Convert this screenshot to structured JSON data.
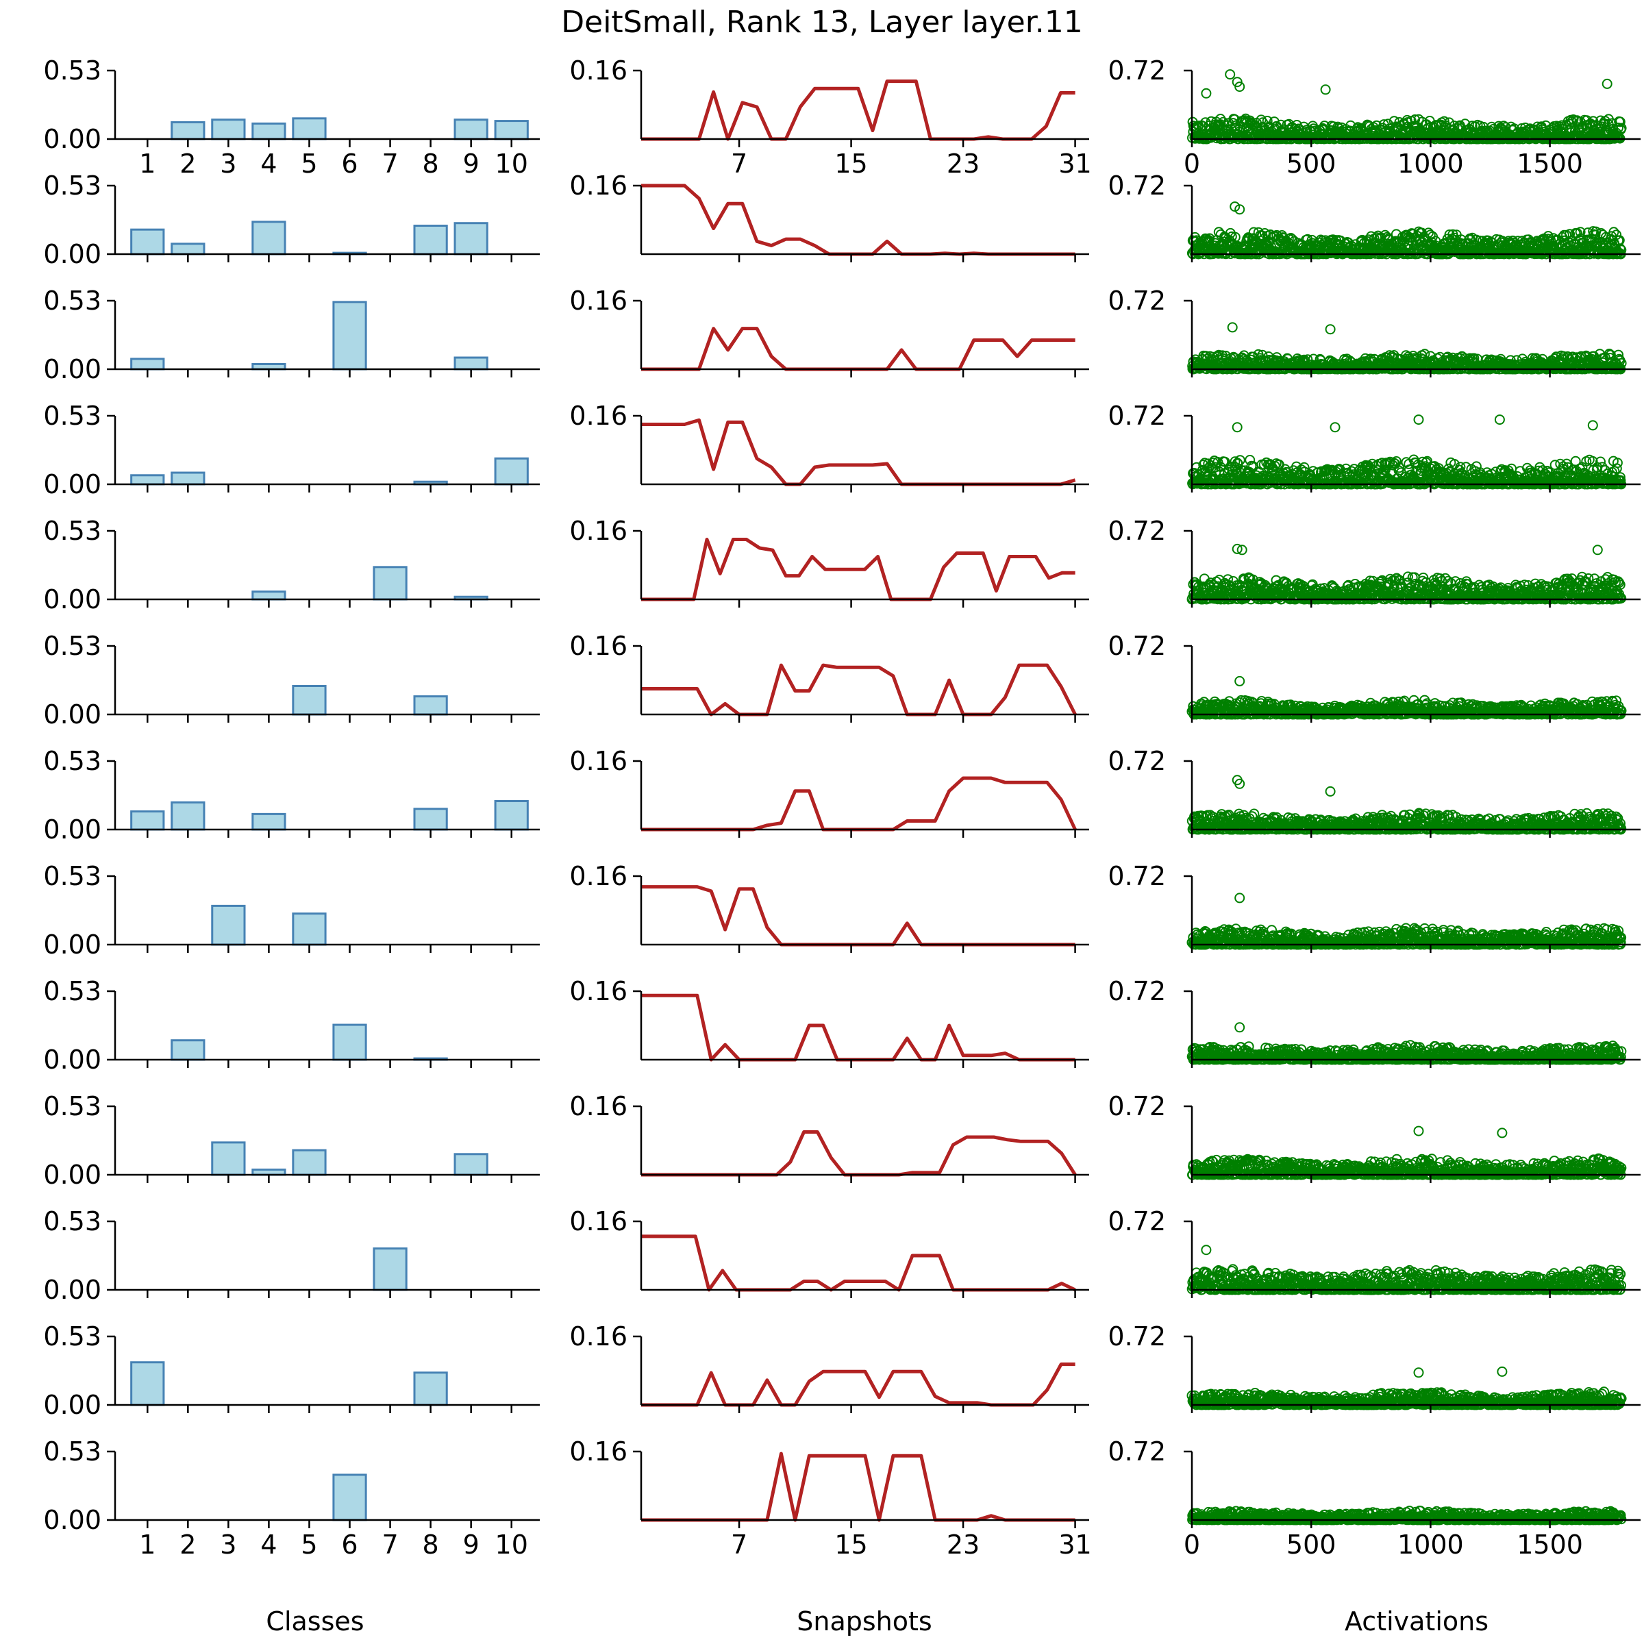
{
  "title": "DeitSmall, Rank 13, Layer layer.11",
  "colors": {
    "bar_fill": "#add8e6",
    "bar_edge": "#4682b4",
    "line": "#b22222",
    "scatter": "#008000",
    "axis": "#000000"
  },
  "chart_data": {
    "type": "grid",
    "rows": 13,
    "columns": [
      {
        "type": "bar",
        "xlabel": "Classes",
        "categories": [
          "1",
          "2",
          "3",
          "4",
          "5",
          "6",
          "7",
          "8",
          "9",
          "10"
        ],
        "y_ticks": [
          "0.00",
          "0.53"
        ],
        "ylim": [
          0,
          0.53
        ],
        "series": [
          [
            0.0,
            0.13,
            0.15,
            0.12,
            0.16,
            0.0,
            0.0,
            0.0,
            0.15,
            0.14
          ],
          [
            0.19,
            0.08,
            0.0,
            0.25,
            0.0,
            0.01,
            0.0,
            0.22,
            0.24,
            0.0
          ],
          [
            0.08,
            0.0,
            0.0,
            0.04,
            0.0,
            0.52,
            0.0,
            0.0,
            0.09,
            0.0
          ],
          [
            0.07,
            0.09,
            0.0,
            0.0,
            0.0,
            0.0,
            0.0,
            0.02,
            0.0,
            0.2
          ],
          [
            0.0,
            0.0,
            0.0,
            0.06,
            0.0,
            0.0,
            0.25,
            0.0,
            0.02,
            0.0
          ],
          [
            0.0,
            0.0,
            0.0,
            0.0,
            0.22,
            0.0,
            0.0,
            0.14,
            0.0,
            0.0
          ],
          [
            0.14,
            0.21,
            0.0,
            0.12,
            0.0,
            0.0,
            0.0,
            0.16,
            0.0,
            0.22
          ],
          [
            0.0,
            0.0,
            0.3,
            0.0,
            0.24,
            0.0,
            0.0,
            0.0,
            0.0,
            0.0
          ],
          [
            0.0,
            0.15,
            0.0,
            0.0,
            0.0,
            0.27,
            0.0,
            0.01,
            0.0,
            0.0
          ],
          [
            0.0,
            0.0,
            0.25,
            0.04,
            0.19,
            0.0,
            0.0,
            0.0,
            0.16,
            0.0
          ],
          [
            0.0,
            0.0,
            0.0,
            0.0,
            0.0,
            0.0,
            0.32,
            0.0,
            0.0,
            0.0
          ],
          [
            0.33,
            0.0,
            0.0,
            0.0,
            0.0,
            0.0,
            0.0,
            0.25,
            0.0,
            0.0
          ],
          [
            0.0,
            0.0,
            0.0,
            0.0,
            0.0,
            0.35,
            0.0,
            0.0,
            0.0,
            0.0
          ]
        ]
      },
      {
        "type": "line",
        "xlabel": "Snapshots",
        "x_ticks": [
          "7",
          "15",
          "23",
          "31"
        ],
        "x_tick_values": [
          7,
          15,
          23,
          31
        ],
        "xlim": [
          0,
          32
        ],
        "y_ticks": [
          "0.16"
        ],
        "ylim": [
          0,
          0.16
        ],
        "series": [
          [
            0,
            0,
            0,
            0,
            0,
            0.11,
            0,
            0.085,
            0.075,
            0,
            0,
            0.075,
            0.118,
            0.118,
            0.118,
            0.118,
            0.02,
            0.135,
            0.135,
            0.135,
            0,
            0,
            0,
            0,
            0.005,
            0,
            0,
            0,
            0.03,
            0.108,
            0.108
          ],
          [
            0.16,
            0.16,
            0.16,
            0.16,
            0.13,
            0.06,
            0.118,
            0.118,
            0.03,
            0.02,
            0.035,
            0.035,
            0.02,
            0,
            0,
            0,
            0,
            0.03,
            0,
            0,
            0,
            0.002,
            0,
            0.002,
            0,
            0,
            0,
            0,
            0,
            0,
            0
          ],
          [
            0,
            0,
            0,
            0,
            0,
            0.095,
            0.045,
            0.095,
            0.095,
            0.03,
            0,
            0,
            0,
            0,
            0,
            0,
            0,
            0,
            0.045,
            0,
            0,
            0,
            0,
            0.068,
            0.068,
            0.068,
            0.03,
            0.068,
            0.068,
            0.068,
            0.068
          ],
          [
            0.14,
            0.14,
            0.14,
            0.14,
            0.15,
            0.035,
            0.145,
            0.145,
            0.06,
            0.04,
            0,
            0,
            0.04,
            0.045,
            0.045,
            0.045,
            0.045,
            0.048,
            0,
            0,
            0,
            0,
            0,
            0,
            0,
            0,
            0,
            0,
            0,
            0,
            0.01
          ],
          [
            0,
            0,
            0,
            0,
            0,
            0.14,
            0.06,
            0.14,
            0.14,
            0.12,
            0.115,
            0.055,
            0.055,
            0.1,
            0.07,
            0.07,
            0.07,
            0.07,
            0.1,
            0,
            0,
            0,
            0,
            0.075,
            0.108,
            0.108,
            0.108,
            0.02,
            0.1,
            0.1,
            0.1,
            0.05,
            0.062,
            0.062
          ],
          [
            0.06,
            0.06,
            0.06,
            0.06,
            0.06,
            0,
            0.025,
            0,
            0,
            0,
            0.115,
            0.055,
            0.055,
            0.115,
            0.11,
            0.11,
            0.11,
            0.11,
            0.09,
            0,
            0,
            0,
            0.08,
            0,
            0,
            0,
            0.04,
            0.115,
            0.115,
            0.115,
            0.065,
            0
          ],
          [
            0,
            0,
            0,
            0,
            0,
            0,
            0,
            0,
            0,
            0.01,
            0.015,
            0.09,
            0.09,
            0,
            0,
            0,
            0,
            0,
            0,
            0.02,
            0.02,
            0.02,
            0.09,
            0.12,
            0.12,
            0.12,
            0.11,
            0.11,
            0.11,
            0.11,
            0.07,
            0
          ],
          [
            0.135,
            0.135,
            0.135,
            0.135,
            0.135,
            0.125,
            0.035,
            0.13,
            0.13,
            0.04,
            0,
            0,
            0,
            0,
            0,
            0,
            0,
            0,
            0,
            0.05,
            0,
            0,
            0,
            0,
            0,
            0,
            0,
            0,
            0,
            0,
            0,
            0
          ],
          [
            0.15,
            0.15,
            0.15,
            0.15,
            0.15,
            0,
            0.035,
            0,
            0,
            0,
            0,
            0,
            0.08,
            0.08,
            0,
            0,
            0,
            0,
            0,
            0.05,
            0,
            0,
            0.08,
            0.01,
            0.01,
            0.01,
            0.015,
            0,
            0,
            0,
            0,
            0
          ],
          [
            0,
            0,
            0,
            0,
            0,
            0,
            0,
            0,
            0,
            0,
            0,
            0.03,
            0.1,
            0.1,
            0.04,
            0,
            0,
            0,
            0,
            0,
            0.005,
            0.005,
            0.005,
            0.07,
            0.088,
            0.088,
            0.088,
            0.082,
            0.078,
            0.078,
            0.078,
            0.05,
            0
          ],
          [
            0.125,
            0.125,
            0.125,
            0.125,
            0.125,
            0,
            0.045,
            0,
            0,
            0,
            0,
            0,
            0.02,
            0.02,
            0,
            0.02,
            0.02,
            0.02,
            0.02,
            0,
            0.08,
            0.08,
            0.08,
            0,
            0,
            0,
            0,
            0,
            0,
            0,
            0,
            0.015,
            0
          ],
          [
            0,
            0,
            0,
            0,
            0,
            0.075,
            0,
            0,
            0,
            0.058,
            0,
            0,
            0.055,
            0.078,
            0.078,
            0.078,
            0.078,
            0.018,
            0.078,
            0.078,
            0.078,
            0.02,
            0.005,
            0.005,
            0.005,
            0,
            0,
            0,
            0,
            0.035,
            0.095,
            0.095
          ],
          [
            0,
            0,
            0,
            0,
            0,
            0,
            0,
            0,
            0,
            0,
            0.155,
            0,
            0.15,
            0.15,
            0.15,
            0.15,
            0.15,
            0,
            0.15,
            0.15,
            0.15,
            0,
            0,
            0,
            0,
            0.01,
            0,
            0,
            0,
            0,
            0,
            0
          ]
        ]
      },
      {
        "type": "scatter",
        "xlabel": "Activations",
        "x_ticks": [
          "0",
          "500",
          "1000",
          "1500"
        ],
        "x_tick_values": [
          0,
          500,
          1000,
          1500
        ],
        "xlim": [
          0,
          1880
        ],
        "y_ticks": [
          "0.72"
        ],
        "ylim": [
          0,
          0.72
        ],
        "n_points": 1800,
        "row_typical_max": [
          0.2,
          0.22,
          0.15,
          0.24,
          0.22,
          0.14,
          0.16,
          0.16,
          0.14,
          0.16,
          0.2,
          0.13,
          0.09
        ],
        "row_outliers": [
          [
            [
              60,
              0.48
            ],
            [
              160,
              0.68
            ],
            [
              190,
              0.6
            ],
            [
              200,
              0.55
            ],
            [
              560,
              0.52
            ],
            [
              1740,
              0.58
            ]
          ],
          [
            [
              180,
              0.5
            ],
            [
              200,
              0.47
            ]
          ],
          [
            [
              170,
              0.44
            ],
            [
              580,
              0.42
            ]
          ],
          [
            [
              190,
              0.6
            ],
            [
              600,
              0.6
            ],
            [
              950,
              0.68
            ],
            [
              1290,
              0.68
            ],
            [
              1680,
              0.62
            ]
          ],
          [
            [
              190,
              0.53
            ],
            [
              210,
              0.52
            ],
            [
              1700,
              0.52
            ]
          ],
          [
            [
              200,
              0.35
            ]
          ],
          [
            [
              190,
              0.52
            ],
            [
              200,
              0.48
            ],
            [
              580,
              0.4
            ]
          ],
          [
            [
              200,
              0.49
            ]
          ],
          [
            [
              200,
              0.34
            ]
          ],
          [
            [
              950,
              0.46
            ],
            [
              1300,
              0.44
            ]
          ],
          [
            [
              60,
              0.42
            ]
          ],
          [
            [
              950,
              0.34
            ],
            [
              1300,
              0.35
            ]
          ],
          []
        ]
      }
    ]
  }
}
